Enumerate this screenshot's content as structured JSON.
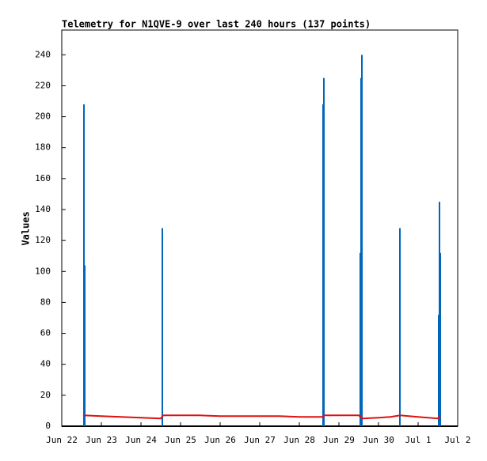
{
  "chart_data": {
    "type": "line",
    "title": "Telemetry for N1QVE-9 over last 240 hours (137 points)",
    "ylabel": "Values",
    "xlim": [
      0,
      10
    ],
    "ylim": [
      0,
      256
    ],
    "xticks": [
      {
        "value": 0,
        "label": "Jun 22"
      },
      {
        "value": 1,
        "label": "Jun 23"
      },
      {
        "value": 2,
        "label": "Jun 24"
      },
      {
        "value": 3,
        "label": "Jun 25"
      },
      {
        "value": 4,
        "label": "Jun 26"
      },
      {
        "value": 5,
        "label": "Jun 27"
      },
      {
        "value": 6,
        "label": "Jun 28"
      },
      {
        "value": 7,
        "label": "Jun 29"
      },
      {
        "value": 8,
        "label": "Jun 30"
      },
      {
        "value": 9,
        "label": "Jul 1"
      },
      {
        "value": 10,
        "label": "Jul 2"
      }
    ],
    "yticks": [
      0,
      20,
      40,
      60,
      80,
      100,
      120,
      140,
      160,
      180,
      200,
      220,
      240
    ],
    "grid": false,
    "series": [
      {
        "style": "impulse",
        "color": "#0066bb",
        "x": [
          0.56,
          0.58,
          2.54,
          6.6,
          6.62,
          7.54,
          7.56,
          7.58,
          8.54,
          9.52,
          9.54,
          9.56
        ],
        "values": [
          208,
          104,
          128,
          208,
          225,
          112,
          225,
          240,
          128,
          72,
          145,
          112
        ]
      },
      {
        "style": "line",
        "color": "#dd1111",
        "x": [
          0.55,
          1.0,
          1.5,
          2.0,
          2.5,
          2.56,
          3.5,
          4.0,
          5.5,
          6.0,
          6.6,
          6.62,
          7.5,
          7.6,
          8.0,
          8.3,
          8.55,
          9.0,
          9.5,
          9.55
        ],
        "values": [
          7,
          6.5,
          6,
          5.5,
          5,
          7,
          7,
          6.5,
          6.5,
          6,
          6,
          7,
          7,
          5,
          5.5,
          6,
          7,
          6,
          5,
          7
        ]
      }
    ]
  }
}
